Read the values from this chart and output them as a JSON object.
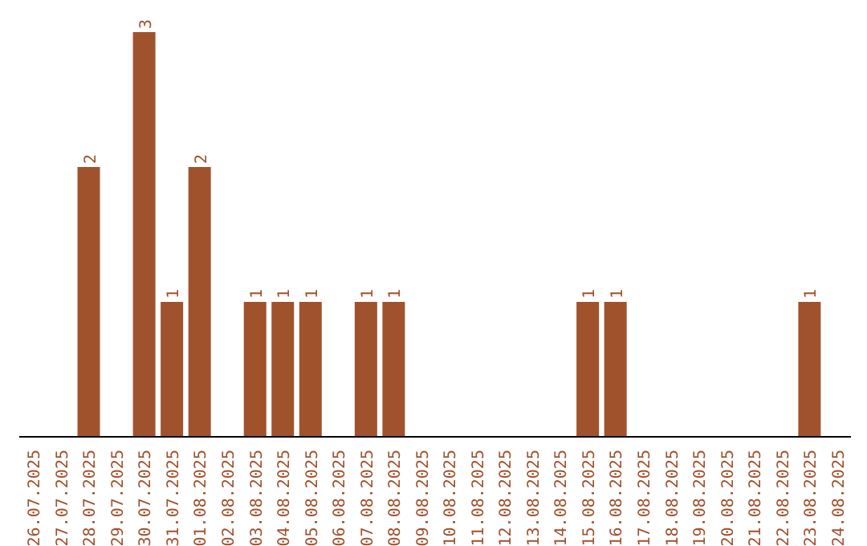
{
  "chart_data": {
    "type": "bar",
    "categories": [
      "26.07.2025",
      "27.07.2025",
      "28.07.2025",
      "29.07.2025",
      "30.07.2025",
      "31.07.2025",
      "01.08.2025",
      "02.08.2025",
      "03.08.2025",
      "04.08.2025",
      "05.08.2025",
      "06.08.2025",
      "07.08.2025",
      "08.08.2025",
      "09.08.2025",
      "10.08.2025",
      "11.08.2025",
      "12.08.2025",
      "13.08.2025",
      "14.08.2025",
      "15.08.2025",
      "16.08.2025",
      "17.08.2025",
      "18.08.2025",
      "19.08.2025",
      "20.08.2025",
      "21.08.2025",
      "22.08.2025",
      "23.08.2025",
      "24.08.2025"
    ],
    "values": [
      0,
      0,
      2,
      0,
      3,
      1,
      2,
      0,
      1,
      1,
      1,
      0,
      1,
      1,
      0,
      0,
      0,
      0,
      0,
      0,
      1,
      1,
      0,
      0,
      0,
      0,
      0,
      0,
      1,
      0
    ],
    "value_labels": [
      null,
      null,
      "2",
      null,
      "3",
      "1",
      "2",
      null,
      "1",
      "1",
      "1",
      null,
      "1",
      "1",
      null,
      null,
      null,
      null,
      null,
      null,
      "1",
      "1",
      null,
      null,
      null,
      null,
      null,
      null,
      "1",
      null
    ],
    "color": "#a0522d",
    "tick_labels": "x",
    "grid": false
  }
}
